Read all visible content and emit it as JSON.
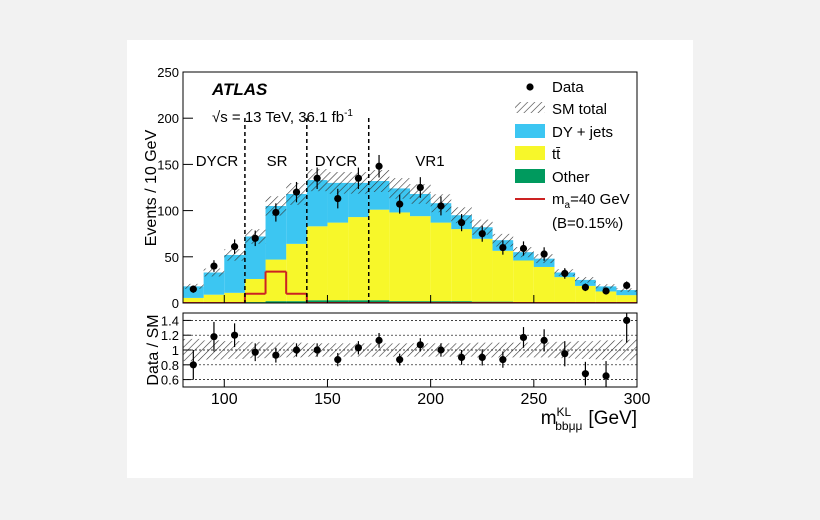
{
  "chart_data": [
    {
      "type": "stacked_histogram",
      "title": "ATLAS",
      "annotation": {
        "text": "√s = 13 TeV,  36.1  fb",
        "sup": "-1"
      },
      "y_label": "Events / 10 GeV",
      "bins": [
        80,
        90,
        100,
        110,
        120,
        130,
        140,
        150,
        160,
        170,
        180,
        190,
        200,
        210,
        220,
        230,
        240,
        250,
        260,
        270,
        280,
        290,
        300
      ],
      "series": [
        {
          "name": "Other",
          "color": "#009a5e",
          "values": [
            0.5,
            1,
            1,
            1,
            2,
            2,
            3,
            3,
            3,
            3,
            2,
            2,
            2,
            2,
            1.5,
            1.5,
            1,
            1,
            1,
            0.5,
            0.5,
            0.5
          ]
        },
        {
          "name": "tt̄",
          "color": "#f7f72a",
          "values": [
            5,
            8,
            10,
            25,
            45,
            62,
            80,
            84,
            90,
            98,
            96,
            92,
            85,
            78,
            68,
            55,
            45,
            38,
            27,
            18,
            12,
            8
          ]
        },
        {
          "name": "DY + jets",
          "color": "#3cc6f2",
          "values": [
            12.5,
            24,
            41,
            46,
            58,
            54,
            50,
            43,
            37,
            31,
            26,
            24,
            21,
            15,
            12.5,
            11.5,
            9,
            9,
            5,
            6.5,
            5.5,
            5.5
          ]
        }
      ],
      "total": {
        "name": "SM total",
        "uncertainty": [
          0.15,
          0.13,
          0.12,
          0.11,
          0.1,
          0.1,
          0.09,
          0.09,
          0.09,
          0.09,
          0.09,
          0.09,
          0.09,
          0.09,
          0.1,
          0.1,
          0.1,
          0.1,
          0.11,
          0.12,
          0.13,
          0.14
        ]
      },
      "data": {
        "name": "Data",
        "values": [
          15,
          40,
          61,
          70,
          98,
          120,
          135,
          113,
          135,
          148,
          107,
          125,
          105,
          87,
          75,
          60,
          59,
          53,
          32,
          17,
          13,
          19
        ],
        "errors": [
          3.9,
          6.3,
          7.8,
          8.4,
          9.9,
          11,
          11.6,
          10.6,
          11.6,
          12.2,
          10.3,
          11.2,
          10.2,
          9.3,
          8.7,
          7.7,
          7.7,
          7.3,
          5.7,
          4.1,
          3.6,
          4.4
        ]
      },
      "signal": {
        "name": "m",
        "name_sub": "a",
        "name_rest": "=40 GeV",
        "note": "(B=0.15%)",
        "color": "#cc2222",
        "values": [
          0,
          0,
          0,
          10,
          34,
          10,
          0,
          0,
          0,
          0,
          0,
          0,
          0,
          0,
          0,
          0,
          0,
          0,
          0,
          0,
          0,
          0
        ]
      },
      "regions": {
        "boundaries": [
          110,
          140,
          170
        ],
        "labels": [
          "DYCR",
          "SR",
          "DYCR",
          "VR1"
        ]
      },
      "xlim": [
        80,
        300
      ],
      "xticks": [
        100,
        150,
        200,
        250,
        300
      ],
      "ylim": [
        0,
        250
      ],
      "yticks": [
        0,
        50,
        100,
        150,
        200,
        250
      ]
    },
    {
      "type": "ratio",
      "y_label": "Data / SM",
      "x_label": {
        "main": "m",
        "sup": "KL",
        "sub": "bbμμ",
        "unit": "[GeV]"
      },
      "values": [
        0.8,
        1.18,
        1.2,
        0.97,
        0.93,
        1.0,
        1.0,
        0.87,
        1.03,
        1.13,
        0.87,
        1.07,
        1.0,
        0.9,
        0.9,
        0.87,
        1.17,
        1.13,
        0.95,
        0.68,
        0.65,
        1.4
      ],
      "errors": [
        0.2,
        0.2,
        0.16,
        0.12,
        0.1,
        0.09,
        0.09,
        0.09,
        0.09,
        0.1,
        0.08,
        0.09,
        0.09,
        0.1,
        0.11,
        0.11,
        0.14,
        0.15,
        0.17,
        0.16,
        0.2,
        0.3
      ],
      "xlim": [
        80,
        300
      ],
      "xticks": [
        100,
        150,
        200,
        250,
        300
      ],
      "ylim": [
        0.5,
        1.5
      ],
      "yticks": [
        0.6,
        0.8,
        1,
        1.2,
        1.4
      ],
      "grid": true
    }
  ]
}
